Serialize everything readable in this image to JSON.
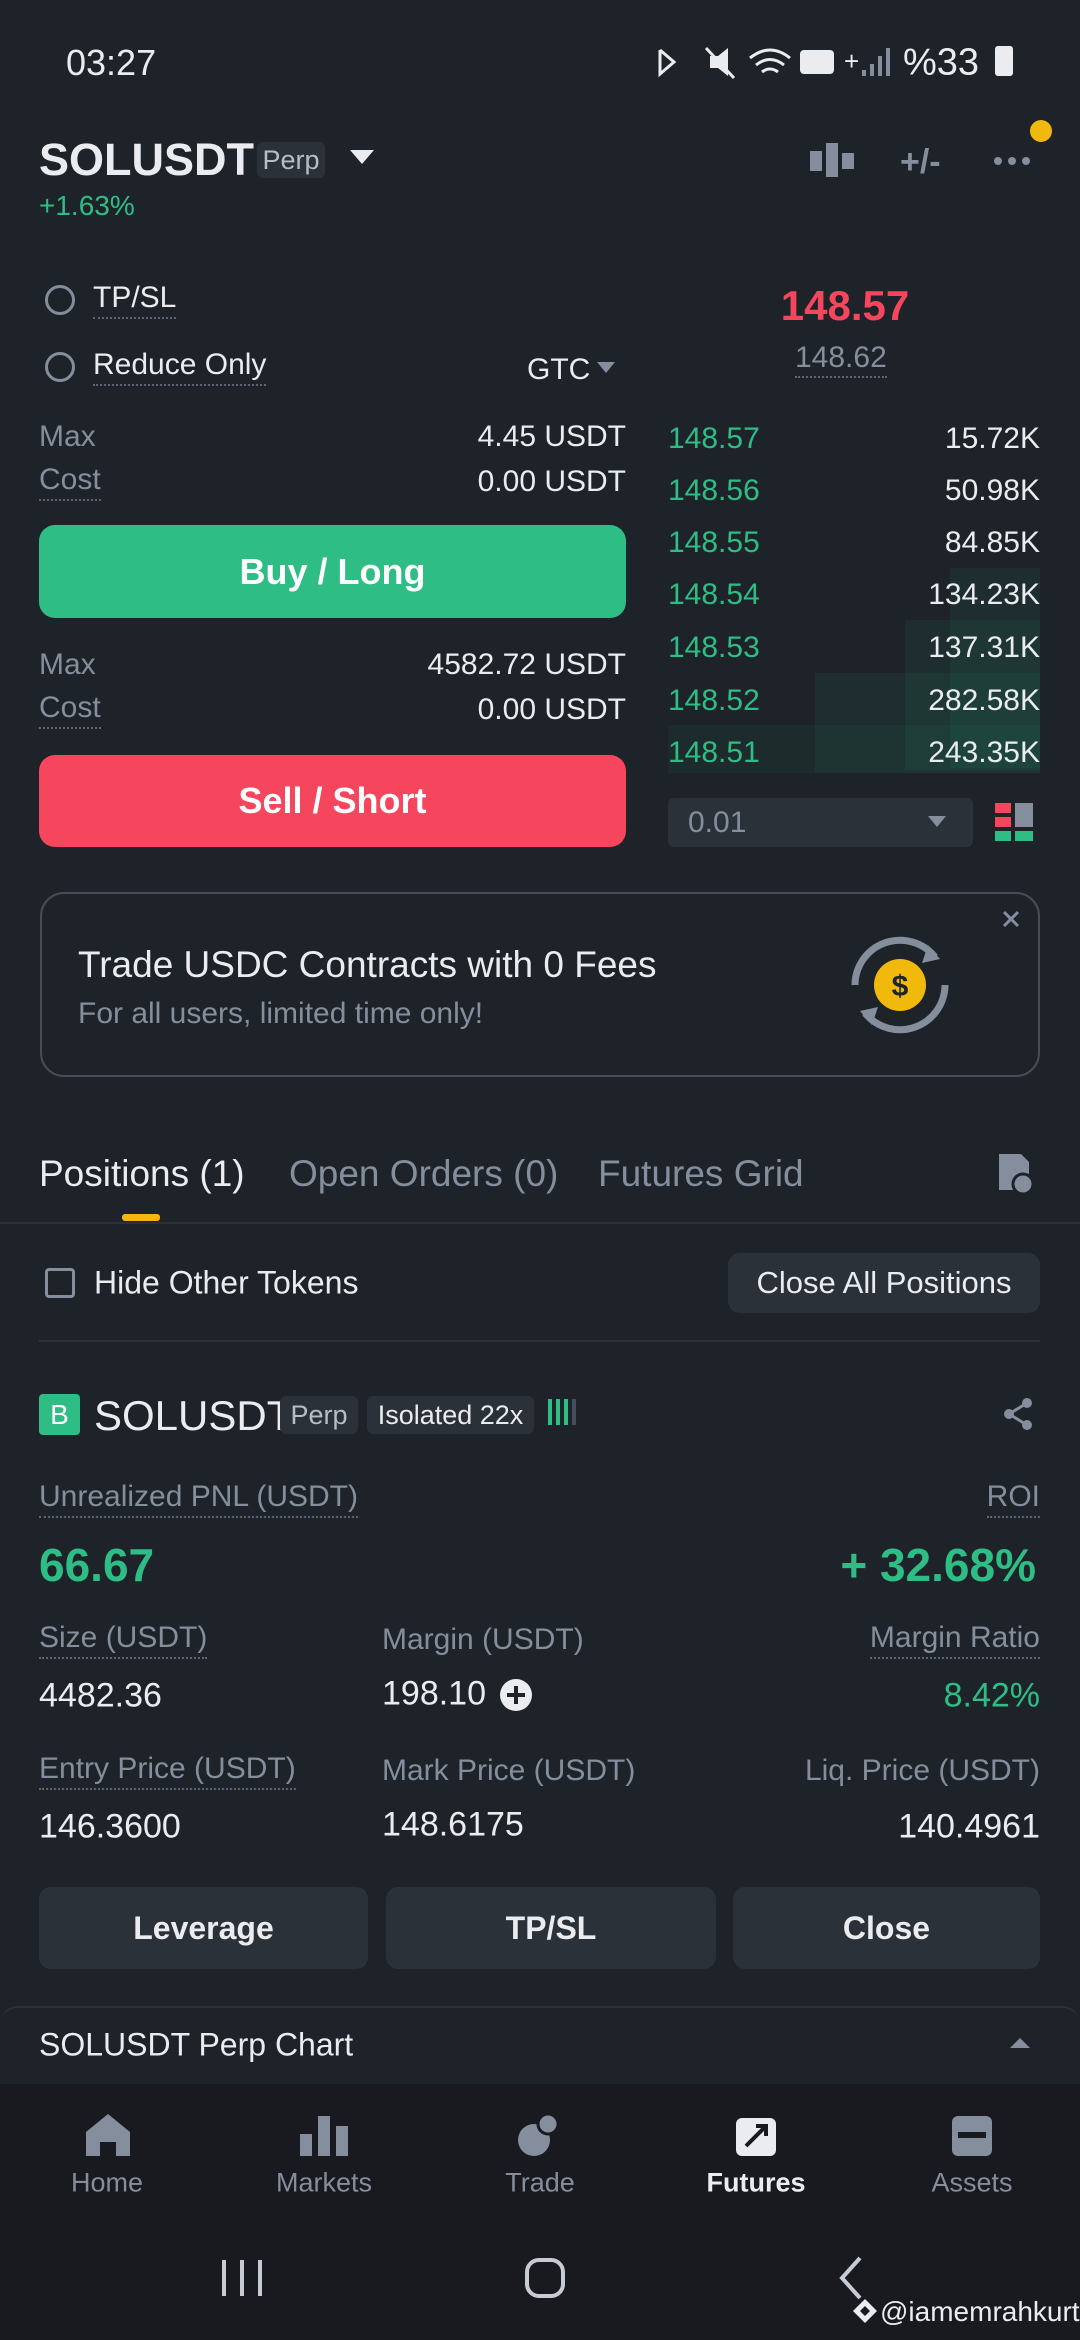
{
  "status_bar": {
    "time": "03:27",
    "battery": "%33"
  },
  "header": {
    "symbol": "SOLUSDT",
    "badge": "Perp",
    "change": "+1.63%"
  },
  "order_form": {
    "tpsl": "TP/SL",
    "reduce_only": "Reduce Only",
    "time_in_force": "GTC",
    "buy": {
      "max_label": "Max",
      "max_value": "4.45 USDT",
      "cost_label": "Cost",
      "cost_value": "0.00 USDT",
      "button": "Buy / Long"
    },
    "sell": {
      "max_label": "Max",
      "max_value": "4582.72 USDT",
      "cost_label": "Cost",
      "cost_value": "0.00 USDT",
      "button": "Sell / Short"
    }
  },
  "order_book": {
    "last_price": "148.57",
    "mark_price": "148.62",
    "rows": [
      [
        "148.57",
        "15.72K"
      ],
      [
        "148.56",
        "50.98K"
      ],
      [
        "148.55",
        "84.85K"
      ],
      [
        "148.54",
        "134.23K"
      ],
      [
        "148.53",
        "137.31K"
      ],
      [
        "148.52",
        "282.58K"
      ],
      [
        "148.51",
        "243.35K"
      ]
    ],
    "step": "0.01"
  },
  "banner": {
    "title": "Trade USDC Contracts with 0 Fees",
    "subtitle": "For all users, limited time only!"
  },
  "tabs": [
    "Positions (1)",
    "Open Orders (0)",
    "Futures Grid"
  ],
  "filter": {
    "hide_label": "Hide Other Tokens",
    "close_all": "Close All Positions"
  },
  "position": {
    "side": "B",
    "symbol": "SOLUSDT",
    "badge": "Perp",
    "margin_mode": "Isolated 22x",
    "pnl_label": "Unrealized PNL (USDT)",
    "pnl": "66.67",
    "roi_label": "ROI",
    "roi": "+ 32.68%",
    "fields": [
      [
        {
          "label": "Size (USDT)",
          "value": "4482.36"
        },
        {
          "label": "Margin (USDT)",
          "value": "198.10"
        },
        {
          "label": "Margin Ratio",
          "value": "8.42%"
        }
      ],
      [
        {
          "label": "Entry Price (USDT)",
          "value": "146.3600"
        },
        {
          "label": "Mark Price (USDT)",
          "value": "148.6175"
        },
        {
          "label": "Liq. Price (USDT)",
          "value": "140.4961"
        }
      ]
    ],
    "buttons": [
      "Leverage",
      "TP/SL",
      "Close"
    ]
  },
  "chart_bar": {
    "label": "SOLUSDT Perp Chart"
  },
  "nav": [
    "Home",
    "Markets",
    "Trade",
    "Futures",
    "Assets"
  ],
  "watermark": "@iamemrahkurt"
}
